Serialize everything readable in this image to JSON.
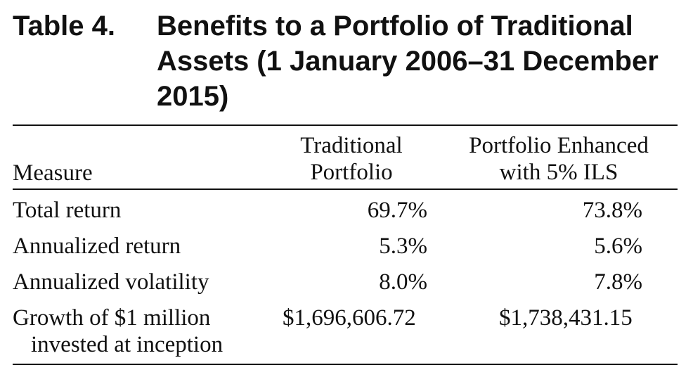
{
  "title": {
    "label": "Table 4.",
    "text": "Benefits to a Portfolio of Traditional Assets (1 January 2006–31 December 2015)"
  },
  "table": {
    "headers": {
      "measure": "Measure",
      "traditional_line1": "Traditional",
      "traditional_line2": "Portfolio",
      "enhanced_line1": "Portfolio Enhanced",
      "enhanced_line2": "with 5% ILS"
    },
    "rows": [
      {
        "measure": "Total return",
        "traditional": "69.7%",
        "enhanced": "73.8%"
      },
      {
        "measure": "Annualized return",
        "traditional": "5.3%",
        "enhanced": "5.6%"
      },
      {
        "measure": "Annualized volatility",
        "traditional": "8.0%",
        "enhanced": "7.8%"
      },
      {
        "measure_line1": "Growth of $1 million",
        "measure_line2": "invested at inception",
        "traditional": "$1,696,606.72",
        "enhanced": "$1,738,431.15"
      }
    ]
  }
}
